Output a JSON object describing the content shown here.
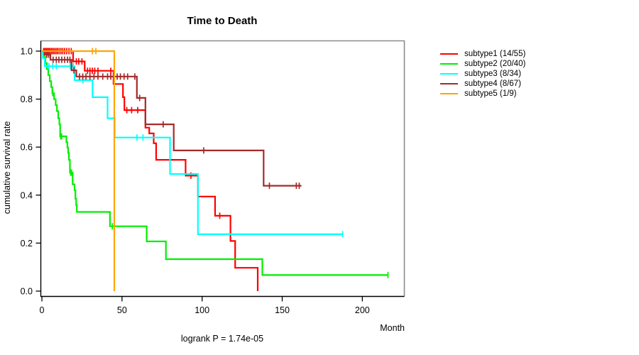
{
  "header": {
    "title": "Time to Death"
  },
  "chart_data": {
    "type": "line",
    "variant": "kaplan-meier-step",
    "title": "Time to Death",
    "xlabel": "Month",
    "ylabel": "cumulative survival rate",
    "footnote": "logrank P = 1.74e-05",
    "xlim": [
      0,
      226
    ],
    "ylim": [
      0,
      1
    ],
    "xticks": [
      0,
      50,
      100,
      150,
      200
    ],
    "ytick_labels": [
      "0.0",
      "0.2",
      "0.4",
      "0.6",
      "0.8",
      "1.0"
    ],
    "grid": false,
    "legend_position": "right",
    "series": [
      {
        "name": "subtype1",
        "label": "subtype1 (14/55)",
        "color": "#ff0000",
        "steps": [
          [
            0,
            1
          ],
          [
            19.5,
            0.957
          ],
          [
            26.7,
            0.918
          ],
          [
            44.7,
            0.863
          ],
          [
            50.6,
            0.808
          ],
          [
            51.5,
            0.754
          ],
          [
            64.6,
            0.681
          ],
          [
            67,
            0.657
          ],
          [
            69.8,
            0.616
          ],
          [
            71.3,
            0.547
          ],
          [
            89.7,
            0.481
          ],
          [
            97.4,
            0.394
          ],
          [
            108.1,
            0.314
          ],
          [
            117.7,
            0.209
          ],
          [
            120.6,
            0.097
          ],
          [
            134.7,
            0
          ]
        ],
        "end": 134.7,
        "censors": [
          [
            1.1,
            1
          ],
          [
            1.9,
            1
          ],
          [
            2.7,
            1
          ],
          [
            3.5,
            1
          ],
          [
            4.3,
            1
          ],
          [
            5.1,
            1
          ],
          [
            6,
            1
          ],
          [
            6.9,
            1
          ],
          [
            7.8,
            1
          ],
          [
            8.8,
            1
          ],
          [
            9.8,
            1
          ],
          [
            10.8,
            1
          ],
          [
            11.9,
            1
          ],
          [
            13,
            1
          ],
          [
            14.2,
            1
          ],
          [
            15.5,
            1
          ],
          [
            16.9,
            1
          ],
          [
            18.3,
            1
          ],
          [
            21.5,
            0.957
          ],
          [
            23,
            0.957
          ],
          [
            25,
            0.957
          ],
          [
            28.5,
            0.918
          ],
          [
            30,
            0.918
          ],
          [
            31.5,
            0.918
          ],
          [
            33,
            0.918
          ],
          [
            35,
            0.918
          ],
          [
            43,
            0.918
          ],
          [
            53,
            0.754
          ],
          [
            56,
            0.754
          ],
          [
            59.8,
            0.754
          ],
          [
            93,
            0.481
          ],
          [
            111,
            0.314
          ]
        ]
      },
      {
        "name": "subtype2",
        "label": "subtype2 (20/40)",
        "color": "#00ee00",
        "steps": [
          [
            0,
            1
          ],
          [
            1.3,
            0.975
          ],
          [
            2.2,
            0.95
          ],
          [
            3.1,
            0.925
          ],
          [
            4,
            0.9
          ],
          [
            4.9,
            0.875
          ],
          [
            5.8,
            0.85
          ],
          [
            6.5,
            0.825
          ],
          [
            7.6,
            0.8
          ],
          [
            8.6,
            0.775
          ],
          [
            9.4,
            0.75
          ],
          [
            10.2,
            0.72
          ],
          [
            10.9,
            0.695
          ],
          [
            11.4,
            0.645
          ],
          [
            15.3,
            0.62
          ],
          [
            15.9,
            0.598
          ],
          [
            16.4,
            0.575
          ],
          [
            16.9,
            0.547
          ],
          [
            17.5,
            0.494
          ],
          [
            19.2,
            0.445
          ],
          [
            20.4,
            0.42
          ],
          [
            20.9,
            0.385
          ],
          [
            21.4,
            0.358
          ],
          [
            21.8,
            0.33
          ],
          [
            42.5,
            0.27
          ],
          [
            65.4,
            0.207
          ],
          [
            77.4,
            0.133
          ],
          [
            137.6,
            0.067
          ]
        ],
        "end": 216,
        "censors": [
          [
            6.8,
            0.825
          ],
          [
            11.7,
            0.645
          ],
          [
            12.3,
            0.645
          ],
          [
            17.9,
            0.494
          ],
          [
            18.5,
            0.494
          ],
          [
            44,
            0.27
          ],
          [
            216,
            0.067
          ]
        ]
      },
      {
        "name": "subtype3",
        "label": "subtype3 (8/34)",
        "color": "#00ffff",
        "steps": [
          [
            0,
            1
          ],
          [
            0.6,
            0.971
          ],
          [
            1.8,
            0.937
          ],
          [
            20.4,
            0.879
          ],
          [
            31.6,
            0.808
          ],
          [
            41,
            0.72
          ],
          [
            45.4,
            0.64
          ],
          [
            80,
            0.488
          ],
          [
            97.4,
            0.237
          ]
        ],
        "end": 187.7,
        "censors": [
          [
            4.3,
            0.937
          ],
          [
            6.8,
            0.937
          ],
          [
            9,
            0.937
          ],
          [
            17.7,
            0.937
          ],
          [
            19.6,
            0.937
          ],
          [
            25.6,
            0.879
          ],
          [
            59.3,
            0.64
          ],
          [
            63.1,
            0.64
          ],
          [
            187.7,
            0.237
          ]
        ]
      },
      {
        "name": "subtype4",
        "label": "subtype4 (8/67)",
        "color": "#a52a2a",
        "steps": [
          [
            0,
            1
          ],
          [
            1.6,
            0.985
          ],
          [
            5.3,
            0.964
          ],
          [
            18.5,
            0.92
          ],
          [
            21.5,
            0.894
          ],
          [
            59.3,
            0.805
          ],
          [
            64.6,
            0.695
          ],
          [
            82.3,
            0.586
          ],
          [
            138.4,
            0.439
          ]
        ],
        "end": 162,
        "censors": [
          [
            3,
            0.985
          ],
          [
            4.2,
            0.985
          ],
          [
            7,
            0.964
          ],
          [
            9,
            0.964
          ],
          [
            10.6,
            0.964
          ],
          [
            12.4,
            0.964
          ],
          [
            14.2,
            0.964
          ],
          [
            16,
            0.964
          ],
          [
            17.5,
            0.964
          ],
          [
            20,
            0.92
          ],
          [
            23.5,
            0.894
          ],
          [
            25.5,
            0.894
          ],
          [
            27.5,
            0.894
          ],
          [
            30,
            0.894
          ],
          [
            32.5,
            0.894
          ],
          [
            35,
            0.894
          ],
          [
            38,
            0.894
          ],
          [
            41,
            0.894
          ],
          [
            43,
            0.894
          ],
          [
            47,
            0.894
          ],
          [
            49,
            0.894
          ],
          [
            51.3,
            0.894
          ],
          [
            53.5,
            0.894
          ],
          [
            58,
            0.894
          ],
          [
            61,
            0.805
          ],
          [
            75.7,
            0.695
          ],
          [
            101,
            0.586
          ],
          [
            142,
            0.439
          ],
          [
            158.8,
            0.439
          ],
          [
            160.6,
            0.439
          ]
        ]
      },
      {
        "name": "subtype5",
        "label": "subtype5 (1/9)",
        "color": "#ffa500",
        "steps": [
          [
            0,
            1
          ],
          [
            45.2,
            0
          ]
        ],
        "end": 45.2,
        "censors": [
          [
            31.5,
            1
          ],
          [
            33.7,
            1
          ]
        ]
      }
    ]
  }
}
